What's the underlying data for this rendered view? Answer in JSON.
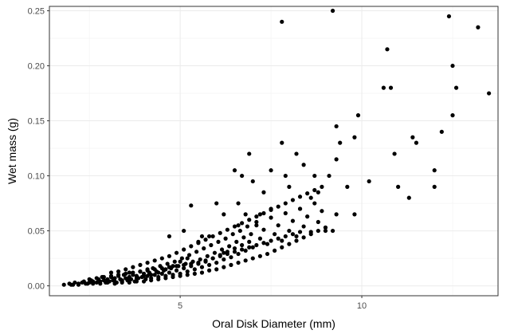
{
  "chart_data": {
    "type": "scatter",
    "xlabel": "Oral Disk Diameter (mm)",
    "ylabel": "Wet mass (g)",
    "xlim": [
      1.4,
      13.75
    ],
    "ylim": [
      -0.009,
      0.254
    ],
    "xticks": [
      5,
      10
    ],
    "xtick_labels": [
      "5",
      "10"
    ],
    "xticks_minor": [
      2.5,
      7.5,
      12.5
    ],
    "yticks": [
      0.0,
      0.05,
      0.1,
      0.15,
      0.2,
      0.25
    ],
    "ytick_labels": [
      "0.00",
      "0.05",
      "0.10",
      "0.15",
      "0.20",
      "0.25"
    ],
    "yticks_minor": [
      0.025,
      0.075,
      0.125,
      0.175,
      0.225
    ],
    "grid": true,
    "point_color": "#000000",
    "grid_color": "#ebebeb",
    "series": [
      {
        "points": [
          [
            1.8,
            0.001
          ],
          [
            1.95,
            0.002
          ],
          [
            2.05,
            0.001
          ],
          [
            2.1,
            0.003
          ],
          [
            2.2,
            0.002
          ],
          [
            2.3,
            0.003
          ],
          [
            2.35,
            0.004
          ],
          [
            2.45,
            0.002
          ],
          [
            2.5,
            0.003
          ],
          [
            2.55,
            0.005
          ],
          [
            2.6,
            0.004
          ],
          [
            2.7,
            0.003
          ],
          [
            2.75,
            0.006
          ],
          [
            2.8,
            0.004
          ],
          [
            2.85,
            0.008
          ],
          [
            2.9,
            0.005
          ],
          [
            2.95,
            0.003
          ],
          [
            3.0,
            0.006
          ],
          [
            3.05,
            0.004
          ],
          [
            3.1,
            0.008
          ],
          [
            3.15,
            0.005
          ],
          [
            3.2,
            0.007
          ],
          [
            3.25,
            0.003
          ],
          [
            3.3,
            0.009
          ],
          [
            3.35,
            0.006
          ],
          [
            3.4,
            0.004
          ],
          [
            3.45,
            0.01
          ],
          [
            3.5,
            0.007
          ],
          [
            3.55,
            0.005
          ],
          [
            3.6,
            0.012
          ],
          [
            3.6,
            0.008
          ],
          [
            3.65,
            0.006
          ],
          [
            3.7,
            0.01
          ],
          [
            3.75,
            0.004
          ],
          [
            3.8,
            0.009
          ],
          [
            3.85,
            0.007
          ],
          [
            3.9,
            0.013
          ],
          [
            3.95,
            0.008
          ],
          [
            4.0,
            0.011
          ],
          [
            4.05,
            0.006
          ],
          [
            4.1,
            0.015
          ],
          [
            4.1,
            0.009
          ],
          [
            4.15,
            0.012
          ],
          [
            4.2,
            0.007
          ],
          [
            4.25,
            0.016
          ],
          [
            4.3,
            0.01
          ],
          [
            4.35,
            0.013
          ],
          [
            4.4,
            0.008
          ],
          [
            4.45,
            0.018
          ],
          [
            4.5,
            0.011
          ],
          [
            4.55,
            0.014
          ],
          [
            4.6,
            0.009
          ],
          [
            4.65,
            0.02
          ],
          [
            4.7,
            0.012
          ],
          [
            4.75,
            0.016
          ],
          [
            4.8,
            0.01
          ],
          [
            4.85,
            0.022
          ],
          [
            4.9,
            0.014
          ],
          [
            4.95,
            0.018
          ],
          [
            5.0,
            0.011
          ],
          [
            5.05,
            0.025
          ],
          [
            5.1,
            0.016
          ],
          [
            5.15,
            0.02
          ],
          [
            5.2,
            0.013
          ],
          [
            5.25,
            0.028
          ],
          [
            5.3,
            0.018
          ],
          [
            5.35,
            0.022
          ],
          [
            5.4,
            0.015
          ],
          [
            5.45,
            0.031
          ],
          [
            5.5,
            0.02
          ],
          [
            5.55,
            0.024
          ],
          [
            5.6,
            0.017
          ],
          [
            5.65,
            0.034
          ],
          [
            5.7,
            0.022
          ],
          [
            5.75,
            0.027
          ],
          [
            5.8,
            0.019
          ],
          [
            5.85,
            0.037
          ],
          [
            5.9,
            0.025
          ],
          [
            5.95,
            0.03
          ],
          [
            6.0,
            0.021
          ],
          [
            6.05,
            0.04
          ],
          [
            6.1,
            0.028
          ],
          [
            6.15,
            0.033
          ],
          [
            6.2,
            0.024
          ],
          [
            6.25,
            0.043
          ],
          [
            6.3,
            0.031
          ],
          [
            6.35,
            0.036
          ],
          [
            6.4,
            0.026
          ],
          [
            6.45,
            0.047
          ],
          [
            6.5,
            0.034
          ],
          [
            6.55,
            0.04
          ],
          [
            6.6,
            0.029
          ],
          [
            6.65,
            0.05
          ],
          [
            6.7,
            0.037
          ],
          [
            6.75,
            0.044
          ],
          [
            6.8,
            0.032
          ],
          [
            6.85,
            0.054
          ],
          [
            6.9,
            0.04
          ],
          [
            6.95,
            0.047
          ],
          [
            7.0,
            0.035
          ],
          [
            7.1,
            0.058
          ],
          [
            7.2,
            0.043
          ],
          [
            7.3,
            0.051
          ],
          [
            7.4,
            0.038
          ],
          [
            7.5,
            0.062
          ],
          [
            7.6,
            0.047
          ],
          [
            7.7,
            0.055
          ],
          [
            7.8,
            0.041
          ],
          [
            7.9,
            0.066
          ],
          [
            8.0,
            0.05
          ],
          [
            8.1,
            0.059
          ],
          [
            8.2,
            0.045
          ],
          [
            8.3,
            0.07
          ],
          [
            8.4,
            0.054
          ],
          [
            8.5,
            0.063
          ],
          [
            8.6,
            0.049
          ],
          [
            8.7,
            0.075
          ],
          [
            8.8,
            0.058
          ],
          [
            8.9,
            0.068
          ],
          [
            9.0,
            0.053
          ],
          [
            5.6,
            0.045
          ],
          [
            6.6,
            0.075
          ],
          [
            7.8,
            0.13
          ],
          [
            8.2,
            0.12
          ],
          [
            6.9,
            0.12
          ],
          [
            8.4,
            0.11
          ],
          [
            7.9,
            0.1
          ],
          [
            8.7,
            0.1
          ],
          [
            9.3,
            0.145
          ],
          [
            9.8,
            0.135
          ],
          [
            9.9,
            0.155
          ],
          [
            9.3,
            0.115
          ],
          [
            9.4,
            0.13
          ],
          [
            9.1,
            0.1
          ],
          [
            9.6,
            0.09
          ],
          [
            10.2,
            0.095
          ],
          [
            9.8,
            0.065
          ],
          [
            10.6,
            0.18
          ],
          [
            10.7,
            0.215
          ],
          [
            10.8,
            0.18
          ],
          [
            10.9,
            0.12
          ],
          [
            11.0,
            0.09
          ],
          [
            11.3,
            0.08
          ],
          [
            11.4,
            0.135
          ],
          [
            11.5,
            0.13
          ],
          [
            12.0,
            0.105
          ],
          [
            12.0,
            0.09
          ],
          [
            12.2,
            0.14
          ],
          [
            12.4,
            0.245
          ],
          [
            12.5,
            0.2
          ],
          [
            12.5,
            0.155
          ],
          [
            12.6,
            0.18
          ],
          [
            13.2,
            0.235
          ],
          [
            13.5,
            0.175
          ],
          [
            9.2,
            0.25
          ],
          [
            7.8,
            0.24
          ],
          [
            5.1,
            0.05
          ],
          [
            4.7,
            0.045
          ],
          [
            5.3,
            0.073
          ],
          [
            6.0,
            0.075
          ],
          [
            6.5,
            0.105
          ],
          [
            6.7,
            0.1
          ],
          [
            7.3,
            0.085
          ],
          [
            7.5,
            0.07
          ],
          [
            8.3,
            0.07
          ],
          [
            8.6,
            0.08
          ],
          [
            9.0,
            0.05
          ],
          [
            9.3,
            0.065
          ],
          [
            9.2,
            0.05
          ],
          [
            8.8,
            0.085
          ],
          [
            8.0,
            0.09
          ],
          [
            7.5,
            0.105
          ],
          [
            7.0,
            0.095
          ],
          [
            7.1,
            0.055
          ],
          [
            7.2,
            0.065
          ],
          [
            6.8,
            0.065
          ],
          [
            6.2,
            0.065
          ],
          [
            6.6,
            0.055
          ],
          [
            5.8,
            0.045
          ],
          [
            6.2,
            0.03
          ],
          [
            5.5,
            0.04
          ],
          [
            5.2,
            0.025
          ],
          [
            5.0,
            0.022
          ],
          [
            4.8,
            0.018
          ],
          [
            4.6,
            0.015
          ],
          [
            4.4,
            0.012
          ],
          [
            4.2,
            0.01
          ],
          [
            4.0,
            0.009
          ],
          [
            3.8,
            0.007
          ],
          [
            3.6,
            0.006
          ],
          [
            3.4,
            0.005
          ],
          [
            3.2,
            0.004
          ],
          [
            3.0,
            0.003
          ],
          [
            2.8,
            0.002
          ],
          [
            2.6,
            0.002
          ],
          [
            2.4,
            0.002
          ],
          [
            2.2,
            0.001
          ],
          [
            2.0,
            0.001
          ],
          [
            3.1,
            0.012
          ],
          [
            3.3,
            0.013
          ],
          [
            3.5,
            0.015
          ],
          [
            3.7,
            0.017
          ],
          [
            3.9,
            0.019
          ],
          [
            4.1,
            0.021
          ],
          [
            4.3,
            0.023
          ],
          [
            4.5,
            0.025
          ],
          [
            4.7,
            0.027
          ],
          [
            4.9,
            0.03
          ],
          [
            5.1,
            0.033
          ],
          [
            5.3,
            0.036
          ],
          [
            5.5,
            0.039
          ],
          [
            5.7,
            0.042
          ],
          [
            5.9,
            0.045
          ],
          [
            6.1,
            0.048
          ],
          [
            6.3,
            0.051
          ],
          [
            6.5,
            0.054
          ],
          [
            6.7,
            0.057
          ],
          [
            6.9,
            0.06
          ],
          [
            7.1,
            0.063
          ],
          [
            7.3,
            0.066
          ],
          [
            7.5,
            0.069
          ],
          [
            7.7,
            0.072
          ],
          [
            7.9,
            0.075
          ],
          [
            8.1,
            0.078
          ],
          [
            8.3,
            0.081
          ],
          [
            8.5,
            0.084
          ],
          [
            8.7,
            0.087
          ],
          [
            8.9,
            0.09
          ],
          [
            3.2,
            0.002
          ],
          [
            3.4,
            0.003
          ],
          [
            3.6,
            0.003
          ],
          [
            3.8,
            0.004
          ],
          [
            4.0,
            0.004
          ],
          [
            4.2,
            0.005
          ],
          [
            4.4,
            0.006
          ],
          [
            4.6,
            0.007
          ],
          [
            4.8,
            0.008
          ],
          [
            5.0,
            0.009
          ],
          [
            5.2,
            0.01
          ],
          [
            5.4,
            0.011
          ],
          [
            5.6,
            0.012
          ],
          [
            5.8,
            0.014
          ],
          [
            6.0,
            0.015
          ],
          [
            6.2,
            0.017
          ],
          [
            6.4,
            0.019
          ],
          [
            6.6,
            0.021
          ],
          [
            6.8,
            0.023
          ],
          [
            7.0,
            0.025
          ],
          [
            7.2,
            0.027
          ],
          [
            7.4,
            0.029
          ],
          [
            7.6,
            0.032
          ],
          [
            7.8,
            0.035
          ],
          [
            8.0,
            0.038
          ],
          [
            8.2,
            0.041
          ],
          [
            8.4,
            0.044
          ],
          [
            8.6,
            0.047
          ],
          [
            8.8,
            0.05
          ],
          [
            9.0,
            0.053
          ],
          [
            2.5,
            0.006
          ],
          [
            2.7,
            0.007
          ],
          [
            2.9,
            0.008
          ],
          [
            3.1,
            0.009
          ],
          [
            3.3,
            0.01
          ],
          [
            3.5,
            0.011
          ],
          [
            3.7,
            0.012
          ],
          [
            3.9,
            0.013
          ],
          [
            4.1,
            0.014
          ],
          [
            4.3,
            0.015
          ],
          [
            4.5,
            0.016
          ],
          [
            4.7,
            0.017
          ],
          [
            4.9,
            0.018
          ],
          [
            5.1,
            0.019
          ],
          [
            5.3,
            0.02
          ],
          [
            5.5,
            0.021
          ],
          [
            5.7,
            0.023
          ],
          [
            5.9,
            0.025
          ],
          [
            6.1,
            0.027
          ],
          [
            6.3,
            0.029
          ],
          [
            6.5,
            0.031
          ],
          [
            6.7,
            0.033
          ],
          [
            6.9,
            0.035
          ],
          [
            7.1,
            0.037
          ],
          [
            7.3,
            0.039
          ],
          [
            7.5,
            0.041
          ],
          [
            7.7,
            0.043
          ],
          [
            7.9,
            0.045
          ],
          [
            8.1,
            0.047
          ],
          [
            8.3,
            0.049
          ]
        ]
      }
    ]
  }
}
